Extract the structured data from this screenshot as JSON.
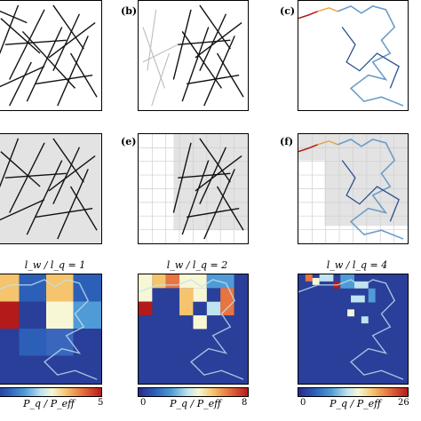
{
  "panel_labels": {
    "b": "(b)",
    "c": "(c)",
    "e": "(e)",
    "f": "(f)"
  },
  "ratio_titles": [
    "l_w / l_q = 1",
    "l_w / l_q = 2",
    "l_w / l_q = 4"
  ],
  "colorbars": [
    {
      "min": "",
      "max": "5",
      "label": "P_q / P_eff"
    },
    {
      "min": "0",
      "max": "8",
      "label": "P_q / P_eff"
    },
    {
      "min": "0",
      "max": "26",
      "label": "P_q / P_eff"
    }
  ],
  "colors": {
    "network": "#111111",
    "faded": "#bbbbbb",
    "path": "#6c9cc7",
    "grid_shade": "#e3e3e3",
    "heat_low": "#2a3f9a",
    "heat_high": "#b31b1b"
  }
}
